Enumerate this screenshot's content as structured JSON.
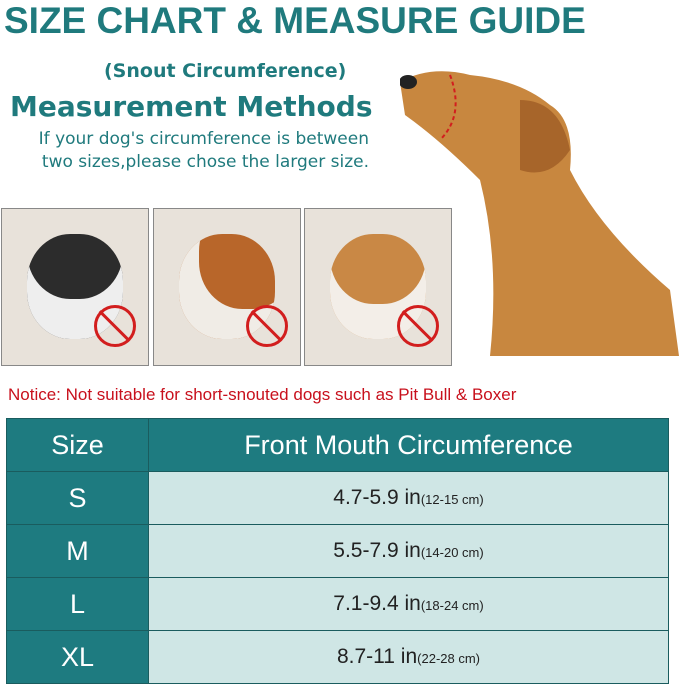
{
  "title": "SIZE CHART & MEASURE GUIDE",
  "subtitle": "(Snout Circumference)",
  "heading": "Measurement Methods",
  "hint": "If your dog's circumference is between two sizes,please chose the larger size.",
  "notice": "Notice:  Not suitable for short-snouted dogs such as Pit Bull & Boxer",
  "table": {
    "headers": [
      "Size",
      "Front Mouth Circumference"
    ],
    "rows": [
      {
        "size": "S",
        "in": "4.7-5.9 in",
        "cm": "(12-15 cm)"
      },
      {
        "size": "M",
        "in": "5.5-7.9 in",
        "cm": "(14-20 cm)"
      },
      {
        "size": "L",
        "in": "7.1-9.4 in",
        "cm": "(18-24 cm)"
      },
      {
        "size": "XL",
        "in": "8.7-11 in",
        "cm": "(22-28 cm)"
      }
    ]
  },
  "colors": {
    "teal": "#1e7b80",
    "light": "#cfe6e5",
    "notice": "#c8101c"
  }
}
